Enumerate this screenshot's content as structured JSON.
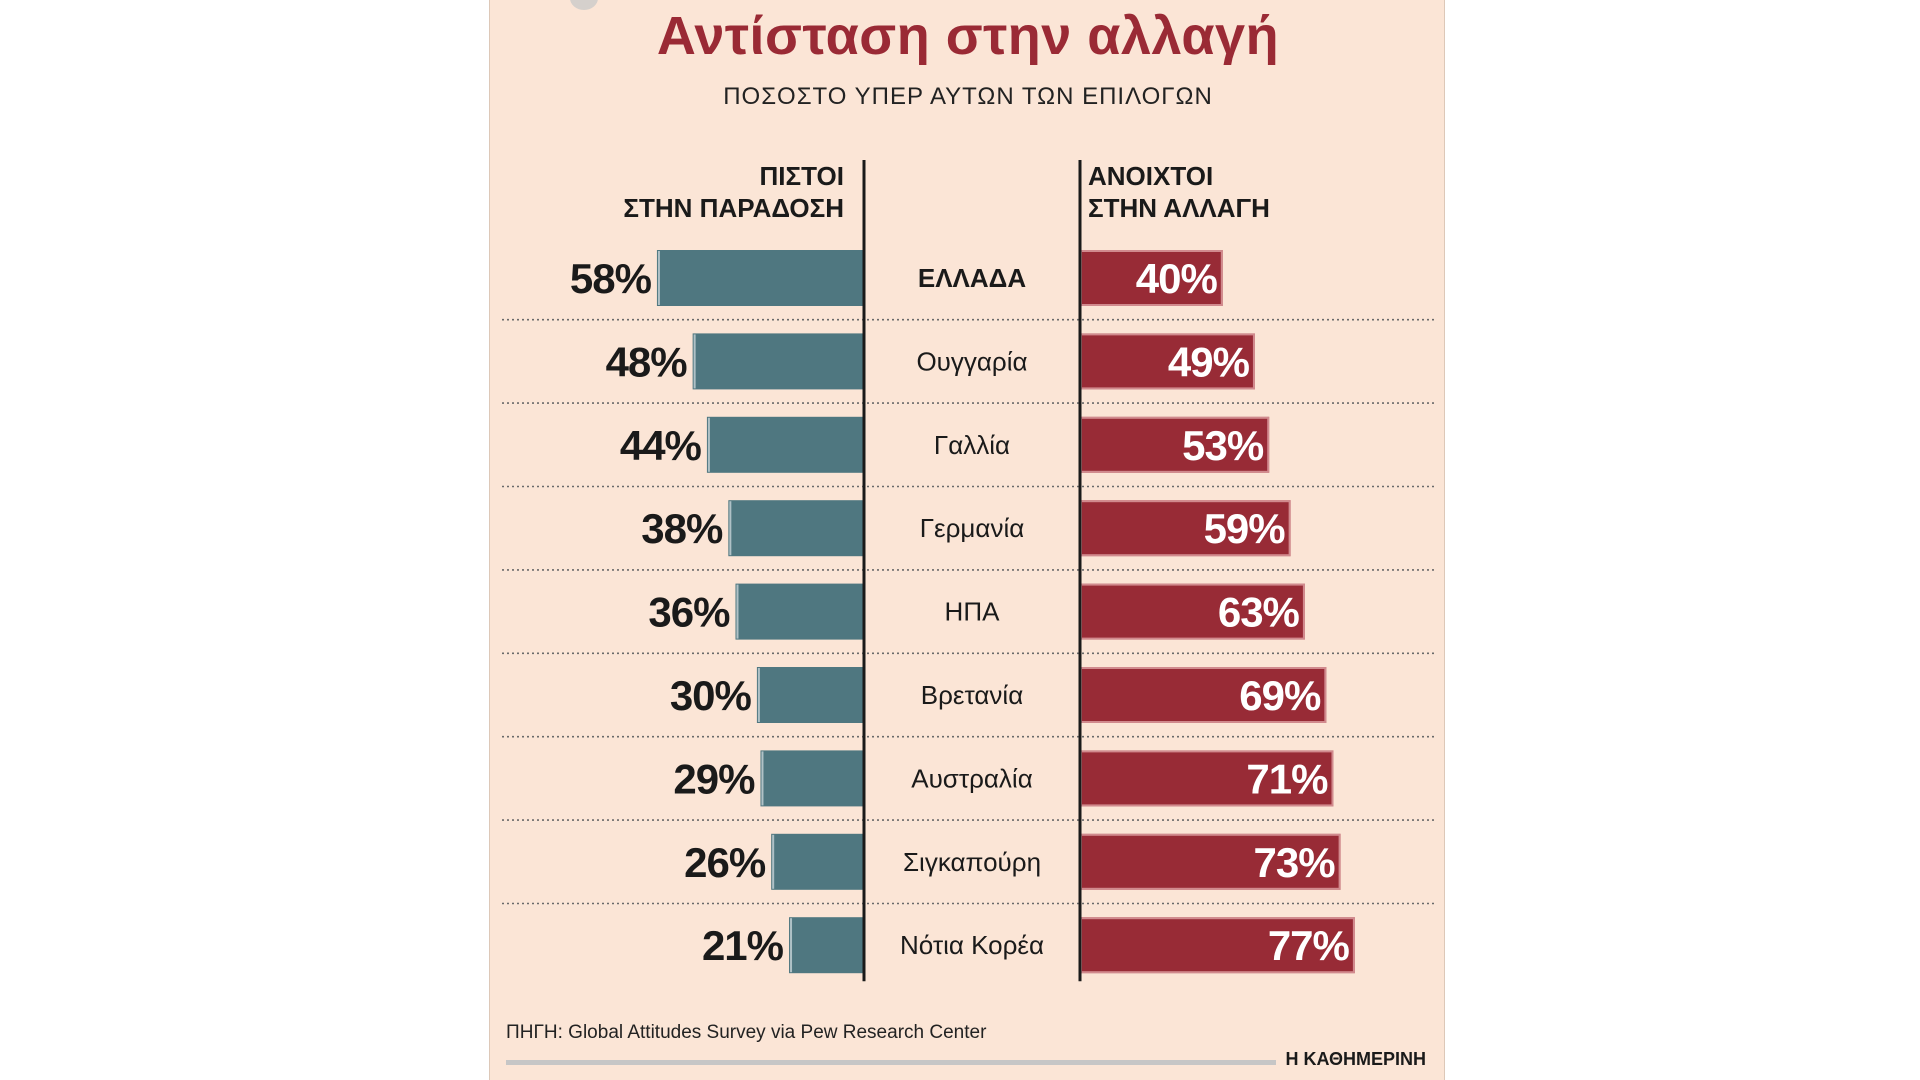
{
  "title": "Αντίσταση στην αλλαγή",
  "subtitle": "ΠΟΣΟΣΤΟ ΥΠΕΡ ΑΥΤΩΝ ΤΩΝ ΕΠΙΛΟΓΩΝ",
  "left_header": [
    "ΠΙΣΤΟΙ",
    "ΣΤΗΝ ΠΑΡΑΔΟΣΗ"
  ],
  "right_header": [
    "ΑΝΟΙΧΤΟΙ",
    "ΣΤΗΝ ΑΛΛΑΓΗ"
  ],
  "source": "ΠΗΓΗ: Global Attitudes Survey via Pew Research Center",
  "brand": "Η ΚΑΘΗΜΕΡΙΝΗ",
  "colors": {
    "tradition": "#4f7780",
    "change": "#982b36",
    "title": "#9a2a35",
    "background": "#fbe5d6"
  },
  "chart_data": {
    "type": "bar",
    "title": "Αντίσταση στην αλλαγή",
    "subtitle": "ΠΟΣΟΣΤΟ ΥΠΕΡ ΑΥΤΩΝ ΤΩΝ ΕΠΙΛΟΓΩΝ",
    "categories": [
      "ΕΛΛΑΔΑ",
      "Ουγγαρία",
      "Γαλλία",
      "Γερμανία",
      "ΗΠΑ",
      "Βρετανία",
      "Αυστραλία",
      "Σιγκαπούρη",
      "Νότια Κορέα"
    ],
    "series": [
      {
        "name": "ΠΙΣΤΟΙ ΣΤΗΝ ΠΑΡΑΔΟΣΗ",
        "values": [
          58,
          48,
          44,
          38,
          36,
          30,
          29,
          26,
          21
        ],
        "labels": [
          "58%",
          "48%",
          "44%",
          "38%",
          "36%",
          "30%",
          "29%",
          "26%",
          "21%"
        ]
      },
      {
        "name": "ΑΝΟΙΧΤΟΙ ΣΤΗΝ ΑΛΛΑΓΗ",
        "values": [
          40,
          49,
          53,
          59,
          63,
          69,
          71,
          73,
          77
        ],
        "labels": [
          "40%",
          "49%",
          "53%",
          "59%",
          "63%",
          "69%",
          "71%",
          "73%",
          "77%"
        ]
      }
    ],
    "unit": "%",
    "xlabel": "",
    "ylabel": "",
    "highlight_category": "ΕΛΛΑΔΑ"
  }
}
